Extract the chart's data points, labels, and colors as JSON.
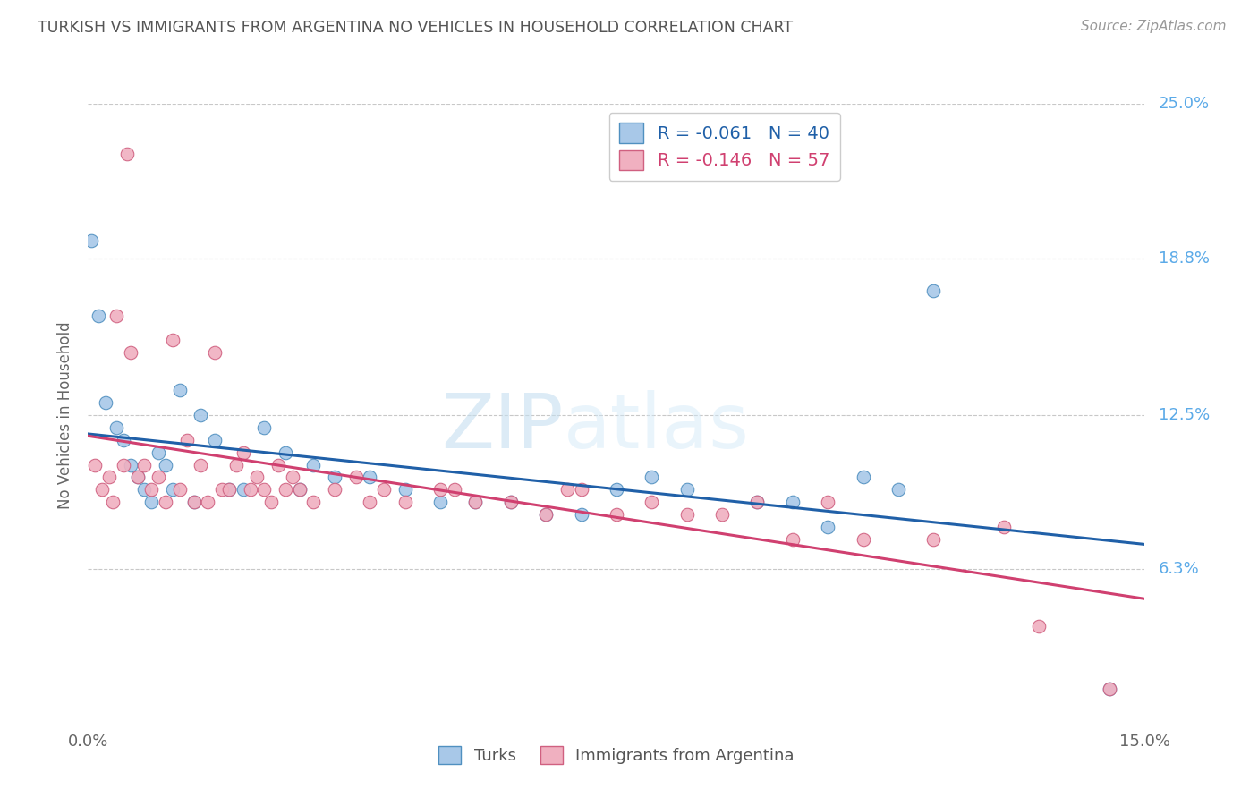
{
  "title": "TURKISH VS IMMIGRANTS FROM ARGENTINA NO VEHICLES IN HOUSEHOLD CORRELATION CHART",
  "source": "Source: ZipAtlas.com",
  "ylabel": "No Vehicles in Household",
  "xlim": [
    0.0,
    15.0
  ],
  "ylim": [
    0.0,
    25.0
  ],
  "yticks": [
    0.0,
    6.3,
    12.5,
    18.8,
    25.0
  ],
  "yticklabels_right": [
    "",
    "6.3%",
    "12.5%",
    "18.8%",
    "25.0%"
  ],
  "background_color": "#ffffff",
  "grid_color": "#c8c8c8",
  "turks_color": "#a8c8e8",
  "turks_edge": "#5090c0",
  "turks_line": "#2060a8",
  "argentina_color": "#f0b0c0",
  "argentina_edge": "#d06080",
  "argentina_line": "#d04070",
  "R_turks": -0.061,
  "N_turks": 40,
  "R_argentina": -0.146,
  "N_argentina": 57,
  "turks_x": [
    0.05,
    0.15,
    0.25,
    0.4,
    0.5,
    0.6,
    0.7,
    0.8,
    0.9,
    1.0,
    1.1,
    1.2,
    1.3,
    1.5,
    1.6,
    1.8,
    2.0,
    2.2,
    2.5,
    2.8,
    3.0,
    3.2,
    3.5,
    4.0,
    4.5,
    5.0,
    5.5,
    6.0,
    6.5,
    7.0,
    7.5,
    8.0,
    8.5,
    9.5,
    10.0,
    10.5,
    11.0,
    11.5,
    12.0,
    14.5
  ],
  "turks_y": [
    19.5,
    16.5,
    13.0,
    12.0,
    11.5,
    10.5,
    10.0,
    9.5,
    9.0,
    11.0,
    10.5,
    9.5,
    13.5,
    9.0,
    12.5,
    11.5,
    9.5,
    9.5,
    12.0,
    11.0,
    9.5,
    10.5,
    10.0,
    10.0,
    9.5,
    9.0,
    9.0,
    9.0,
    8.5,
    8.5,
    9.5,
    10.0,
    9.5,
    9.0,
    9.0,
    8.0,
    10.0,
    9.5,
    17.5,
    1.5
  ],
  "argentina_x": [
    0.1,
    0.2,
    0.3,
    0.35,
    0.4,
    0.5,
    0.55,
    0.6,
    0.7,
    0.8,
    0.9,
    1.0,
    1.1,
    1.2,
    1.3,
    1.4,
    1.5,
    1.6,
    1.7,
    1.8,
    1.9,
    2.0,
    2.1,
    2.2,
    2.3,
    2.4,
    2.5,
    2.6,
    2.7,
    2.8,
    2.9,
    3.0,
    3.2,
    3.5,
    3.8,
    4.0,
    4.2,
    4.5,
    5.0,
    5.2,
    5.5,
    6.0,
    6.5,
    6.8,
    7.0,
    7.5,
    8.0,
    8.5,
    9.0,
    9.5,
    10.0,
    10.5,
    11.0,
    12.0,
    13.0,
    13.5,
    14.5
  ],
  "argentina_y": [
    10.5,
    9.5,
    10.0,
    9.0,
    16.5,
    10.5,
    23.0,
    15.0,
    10.0,
    10.5,
    9.5,
    10.0,
    9.0,
    15.5,
    9.5,
    11.5,
    9.0,
    10.5,
    9.0,
    15.0,
    9.5,
    9.5,
    10.5,
    11.0,
    9.5,
    10.0,
    9.5,
    9.0,
    10.5,
    9.5,
    10.0,
    9.5,
    9.0,
    9.5,
    10.0,
    9.0,
    9.5,
    9.0,
    9.5,
    9.5,
    9.0,
    9.0,
    8.5,
    9.5,
    9.5,
    8.5,
    9.0,
    8.5,
    8.5,
    9.0,
    7.5,
    9.0,
    7.5,
    7.5,
    8.0,
    4.0,
    1.5
  ]
}
